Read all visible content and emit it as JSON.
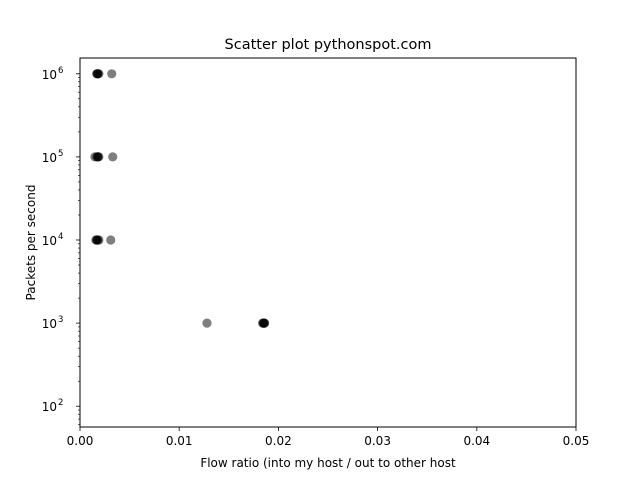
{
  "chart_data": {
    "type": "scatter",
    "title": "Scatter plot pythonspot.com",
    "xlabel": "Flow ratio (into my host / out to other host",
    "ylabel": "Packets per second",
    "xlim": [
      0,
      0.05
    ],
    "ylim_exponents": [
      1.75,
      6.19
    ],
    "y_scale": "log",
    "grid": false,
    "x_ticks": [
      {
        "value": 0.0,
        "label": "0.00"
      },
      {
        "value": 0.01,
        "label": "0.01"
      },
      {
        "value": 0.02,
        "label": "0.02"
      },
      {
        "value": 0.03,
        "label": "0.03"
      },
      {
        "value": 0.04,
        "label": "0.04"
      },
      {
        "value": 0.05,
        "label": "0.05"
      }
    ],
    "y_ticks": [
      {
        "value": 100,
        "base": "10",
        "exp": "2"
      },
      {
        "value": 1000,
        "base": "10",
        "exp": "3"
      },
      {
        "value": 10000,
        "base": "10",
        "exp": "4"
      },
      {
        "value": 100000,
        "base": "10",
        "exp": "5"
      },
      {
        "value": 1000000,
        "base": "10",
        "exp": "6"
      }
    ],
    "marker_color": "#000000",
    "marker_alpha": 0.5,
    "points": [
      {
        "x": 0.0017,
        "y": 1000000
      },
      {
        "x": 0.0018,
        "y": 1000000
      },
      {
        "x": 0.0019,
        "y": 1000000
      },
      {
        "x": 0.0018,
        "y": 1000000
      },
      {
        "x": 0.0017,
        "y": 1000000
      },
      {
        "x": 0.0032,
        "y": 1000000
      },
      {
        "x": 0.0015,
        "y": 100000
      },
      {
        "x": 0.0017,
        "y": 100000
      },
      {
        "x": 0.0018,
        "y": 100000
      },
      {
        "x": 0.0019,
        "y": 100000
      },
      {
        "x": 0.0018,
        "y": 100000
      },
      {
        "x": 0.0033,
        "y": 100000
      },
      {
        "x": 0.0016,
        "y": 10000
      },
      {
        "x": 0.0017,
        "y": 10000
      },
      {
        "x": 0.0018,
        "y": 10000
      },
      {
        "x": 0.0019,
        "y": 10000
      },
      {
        "x": 0.0017,
        "y": 10000
      },
      {
        "x": 0.0031,
        "y": 10000
      },
      {
        "x": 0.0128,
        "y": 1000
      },
      {
        "x": 0.0184,
        "y": 1000
      },
      {
        "x": 0.0185,
        "y": 1000
      },
      {
        "x": 0.0186,
        "y": 1000
      },
      {
        "x": 0.0185,
        "y": 1000
      },
      {
        "x": 0.0186,
        "y": 1000
      }
    ]
  }
}
